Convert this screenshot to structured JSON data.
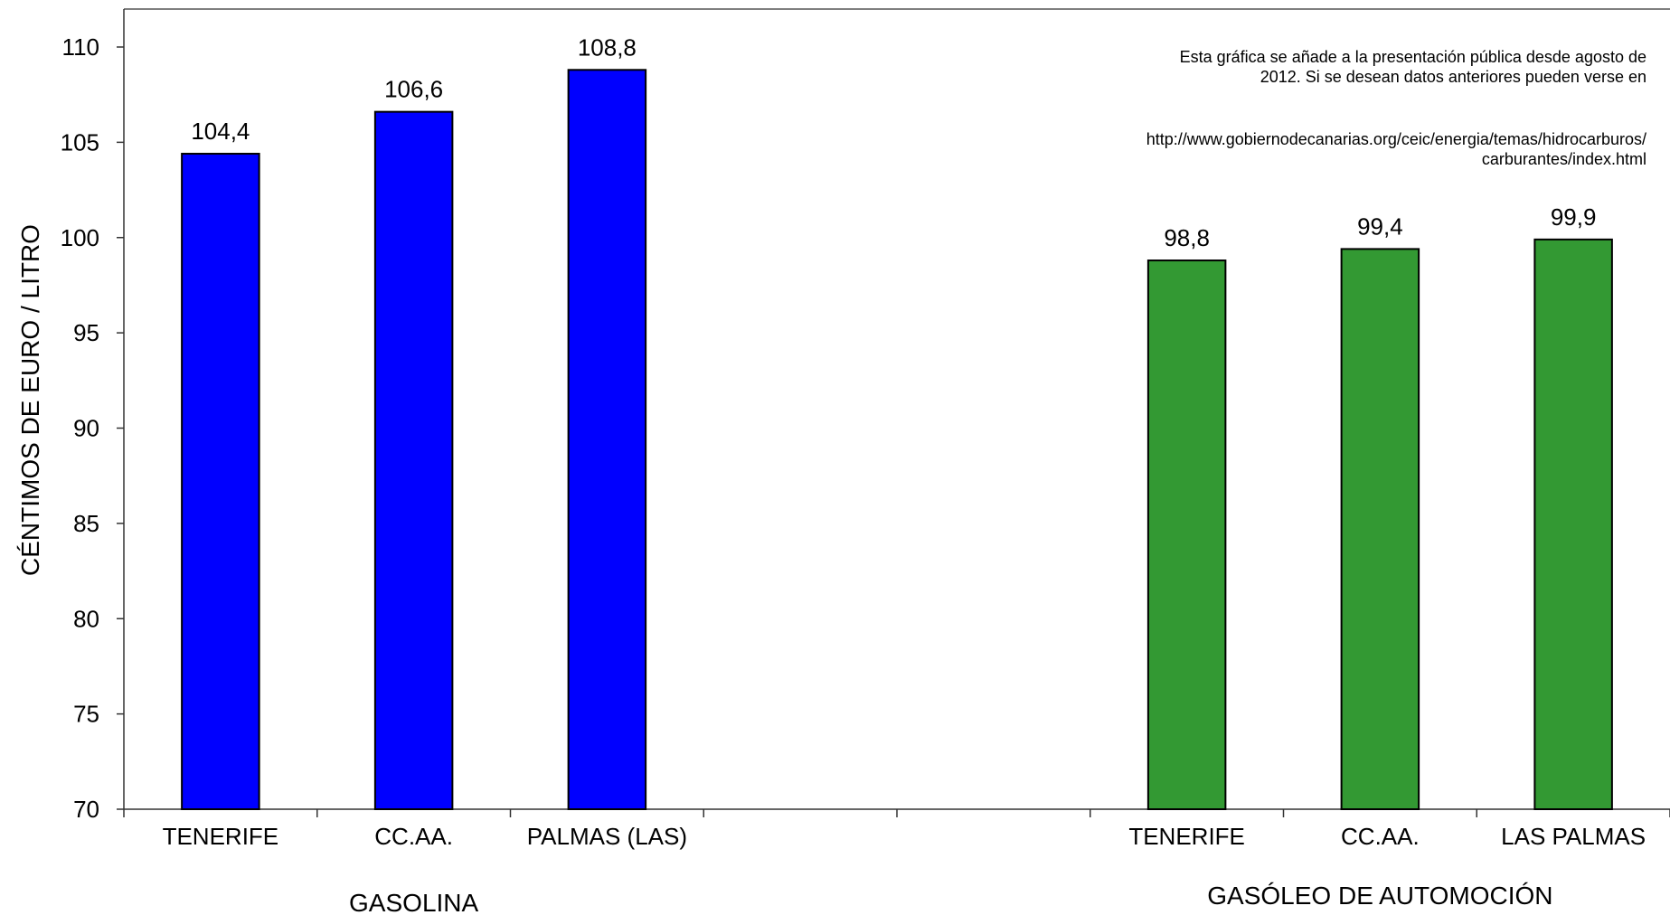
{
  "chart_data": {
    "type": "bar",
    "ylabel": "CÉNTIMOS DE EURO / LITRO",
    "ylim": [
      70,
      110
    ],
    "yticks": [
      70,
      75,
      80,
      85,
      90,
      95,
      100,
      105,
      110
    ],
    "grid": false,
    "categories": [
      "TENERIFE",
      "CC.AA.",
      "PALMAS (LAS)",
      "",
      "",
      "TENERIFE",
      "CC.AA.",
      "LAS PALMAS"
    ],
    "groups": [
      {
        "label": "GASOLINA",
        "categories": [
          "TENERIFE",
          "CC.AA.",
          "PALMAS (LAS)"
        ],
        "values": [
          104.4,
          106.6,
          108.8
        ],
        "value_labels": [
          "104,4",
          "106,6",
          "108,8"
        ],
        "color": "#0000ff"
      },
      {
        "label": "GASÓLEO DE AUTOMOCIÓN",
        "categories": [
          "TENERIFE",
          "CC.AA.",
          "LAS PALMAS"
        ],
        "values": [
          98.8,
          99.4,
          99.9
        ],
        "value_labels": [
          "98,8",
          "99,4",
          "99,9"
        ],
        "color": "#339933"
      }
    ],
    "annotations": [
      "Esta gráfica se añade a la presentación pública desde agosto de 2012. Si se desean datos anteriores pueden verse en",
      "http://www.gobiernodecanarias.org/ceic/energia/temas/hidrocarburos/carburantes/index.html"
    ]
  }
}
